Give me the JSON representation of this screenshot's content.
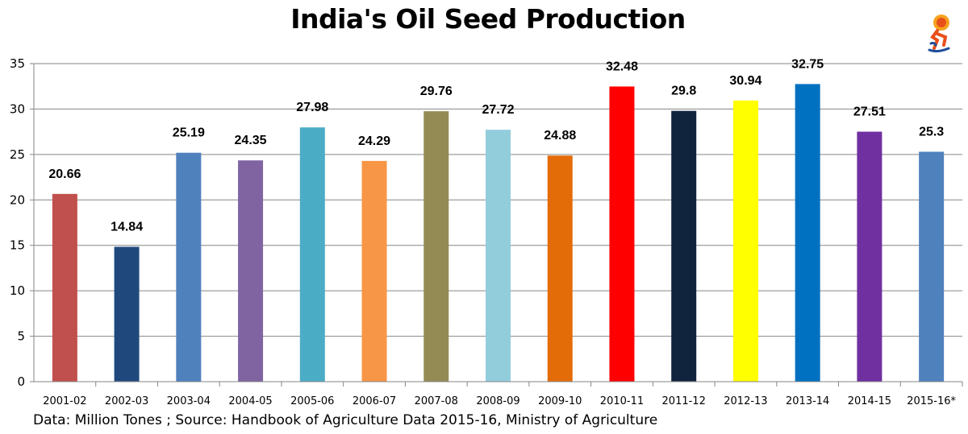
{
  "chart_data": {
    "type": "bar",
    "title": "India's Oil Seed Production",
    "categories": [
      "2001-02",
      "2002-03",
      "2003-04",
      "2004-05",
      "2005-06",
      "2006-07",
      "2007-08",
      "2008-09",
      "2009-10",
      "2010-11",
      "2011-12",
      "2012-13",
      "2013-14",
      "2014-15",
      "2015-16*"
    ],
    "values": [
      20.66,
      14.84,
      25.19,
      24.35,
      27.98,
      24.29,
      29.76,
      27.72,
      24.88,
      32.48,
      29.8,
      30.94,
      32.75,
      27.51,
      25.3
    ],
    "value_labels": [
      "20.66",
      "14.84",
      "25.19",
      "24.35",
      "27.98",
      "24.29",
      "29.76",
      "27.72",
      "24.88",
      "32.48",
      "29.8",
      "30.94",
      "32.75",
      "27.51",
      "25.3"
    ],
    "colors": [
      "#c0504d",
      "#1f497d",
      "#4f81bd",
      "#8064a2",
      "#4bacc6",
      "#f79646",
      "#948a54",
      "#92cddc",
      "#e36c09",
      "#ff0000",
      "#10243e",
      "#ffff00",
      "#0070c0",
      "#7030a0",
      "#4f81bd"
    ],
    "ylim": [
      0,
      35
    ],
    "yticks": [
      "0",
      "5",
      "10",
      "15",
      "20",
      "25",
      "30",
      "35"
    ],
    "xlabel": "",
    "ylabel": "",
    "grid": true,
    "legend": "none"
  },
  "footer": {
    "source": "Data: Million Tones ; Source: Handbook of Agriculture Data 2015-16, Ministry of Agriculture"
  },
  "logo": {
    "icon": "runner-flame-logo-icon"
  }
}
